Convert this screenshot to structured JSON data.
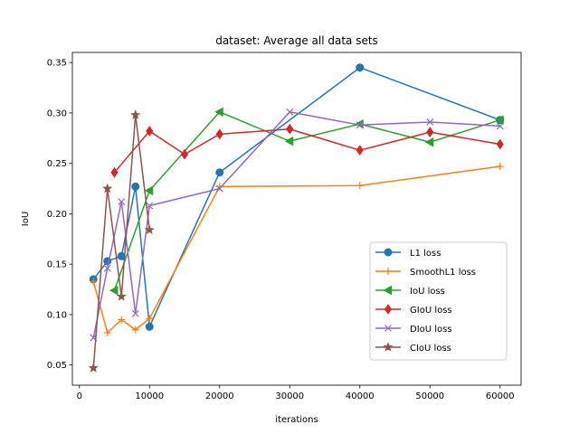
{
  "chart_data": {
    "type": "line",
    "title": "dataset: Average all data sets",
    "xlabel": "iterations",
    "ylabel": "IoU",
    "xlim": [
      -1000,
      63000
    ],
    "ylim": [
      0.03,
      0.36
    ],
    "xticks": [
      0,
      10000,
      20000,
      30000,
      40000,
      50000,
      60000
    ],
    "yticks": [
      0.05,
      0.1,
      0.15,
      0.2,
      0.25,
      0.3,
      0.35
    ],
    "xtick_labels": [
      "0",
      "10000",
      "20000",
      "30000",
      "40000",
      "50000",
      "60000"
    ],
    "ytick_labels": [
      "0.05",
      "0.10",
      "0.15",
      "0.20",
      "0.25",
      "0.30",
      "0.35"
    ],
    "grid": false,
    "legend": "center-right",
    "series": [
      {
        "name": "L1 loss",
        "color": "#1f77b4",
        "marker": "circle",
        "x": [
          2000,
          4000,
          6000,
          8000,
          10000,
          20000,
          40000,
          60000
        ],
        "y": [
          0.135,
          0.153,
          0.158,
          0.227,
          0.088,
          0.241,
          0.345,
          0.293
        ]
      },
      {
        "name": "SmoothL1 loss",
        "color": "#ff7f0e",
        "marker": "plus",
        "x": [
          2000,
          4000,
          6000,
          8000,
          10000,
          20000,
          40000,
          60000
        ],
        "y": [
          0.133,
          0.082,
          0.095,
          0.085,
          0.096,
          0.227,
          0.228,
          0.247
        ]
      },
      {
        "name": "IoU loss",
        "color": "#2ca02c",
        "marker": "triangle-left",
        "x": [
          5000,
          10000,
          20000,
          30000,
          40000,
          50000,
          60000
        ],
        "y": [
          0.124,
          0.223,
          0.301,
          0.272,
          0.289,
          0.271,
          0.293
        ]
      },
      {
        "name": "GIoU loss",
        "color": "#d62728",
        "marker": "diamond",
        "x": [
          5000,
          10000,
          15000,
          20000,
          30000,
          40000,
          50000,
          60000
        ],
        "y": [
          0.241,
          0.282,
          0.259,
          0.279,
          0.284,
          0.263,
          0.281,
          0.269
        ]
      },
      {
        "name": "DIoU loss",
        "color": "#9467bd",
        "marker": "x",
        "x": [
          2000,
          4000,
          6000,
          8000,
          10000,
          20000,
          30000,
          40000,
          50000,
          60000
        ],
        "y": [
          0.077,
          0.146,
          0.212,
          0.101,
          0.208,
          0.225,
          0.301,
          0.288,
          0.291,
          0.287
        ]
      },
      {
        "name": "CIoU loss",
        "color": "#8c564b",
        "marker": "star",
        "x": [
          2000,
          4000,
          6000,
          8000,
          10000
        ],
        "y": [
          0.047,
          0.225,
          0.118,
          0.298,
          0.184
        ]
      }
    ]
  }
}
